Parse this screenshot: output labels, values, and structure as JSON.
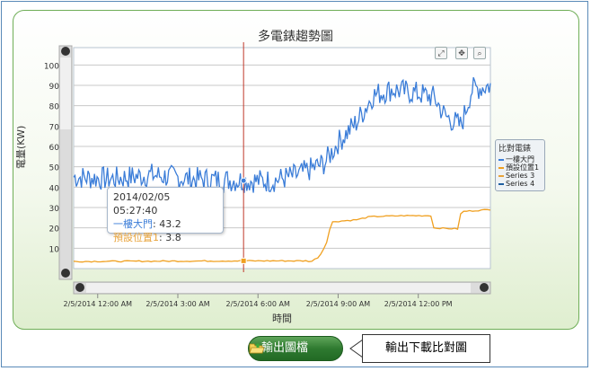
{
  "chart_title": "多電錶趨勢圖",
  "y_axis_label": "電量(KW)",
  "x_axis_label": "時間",
  "tooltip": {
    "date": "2014/02/05 05:27:40",
    "line1_label": "一樓大門",
    "line1_value": ": 43.2",
    "line2_label": "預設位置1",
    "line2_value": ": 3.8"
  },
  "legend": {
    "title": "比對電錶",
    "items": [
      {
        "name": "一樓大門",
        "color": "#3b7dd8"
      },
      {
        "name": "預設位置1",
        "color": "#f0a020"
      },
      {
        "name": "Series 3",
        "color": "#e8a33a"
      },
      {
        "name": "Series 4",
        "color": "#1f5fa0"
      }
    ]
  },
  "toolbar": {
    "reset_icon": "fit-icon",
    "pan_icon": "pan-icon",
    "zoom_icon": "zoom-icon"
  },
  "export_button": {
    "label": "輸出圖檔"
  },
  "callout": {
    "text": "輸出下載比對圖"
  },
  "chart_data": {
    "type": "line",
    "title": "多電錶趨勢圖",
    "xlabel": "時間",
    "ylabel": "電量(KW)",
    "ylim": [
      0,
      105
    ],
    "y_ticks": [
      10,
      20,
      30,
      40,
      50,
      60,
      70,
      80,
      90,
      100
    ],
    "x_tick_labels": [
      "2/5/2014 12:00 AM",
      "2/5/2014 3:00 AM",
      "2/5/2014 6:00 AM",
      "2/5/2014 9:00 AM",
      "2/5/2014 12:00 PM"
    ],
    "x_hours": [
      0,
      3,
      6,
      9,
      12
    ],
    "xlim_hours": [
      -0.9,
      14.7
    ],
    "crosshair_hour": 5.46,
    "series": [
      {
        "name": "一樓大門",
        "color": "#3b7dd8",
        "keyframes": [
          [
            -0.9,
            45
          ],
          [
            0.5,
            44
          ],
          [
            2.0,
            46
          ],
          [
            3.5,
            44
          ],
          [
            5.46,
            43.2
          ],
          [
            6.5,
            43
          ],
          [
            7.5,
            46
          ],
          [
            8.5,
            52
          ],
          [
            9.0,
            62
          ],
          [
            9.7,
            72
          ],
          [
            10.3,
            85
          ],
          [
            11.0,
            88
          ],
          [
            12.0,
            86
          ],
          [
            12.6,
            84
          ],
          [
            13.0,
            75
          ],
          [
            13.6,
            70
          ],
          [
            14.0,
            88
          ],
          [
            14.7,
            90
          ]
        ],
        "noise": 6
      },
      {
        "name": "預設位置1",
        "color": "#f0a020",
        "keyframes": [
          [
            -0.9,
            3.5
          ],
          [
            5.46,
            3.8
          ],
          [
            7.8,
            3.8
          ],
          [
            8.0,
            3.5
          ],
          [
            8.3,
            6
          ],
          [
            8.55,
            12
          ],
          [
            8.7,
            20
          ],
          [
            8.8,
            23
          ],
          [
            9.7,
            24
          ],
          [
            10.2,
            25.5
          ],
          [
            11.5,
            26
          ],
          [
            12.5,
            26
          ],
          [
            12.55,
            20
          ],
          [
            13.5,
            19.5
          ],
          [
            13.6,
            28
          ],
          [
            14.7,
            29
          ]
        ],
        "noise": 0.3
      }
    ]
  }
}
